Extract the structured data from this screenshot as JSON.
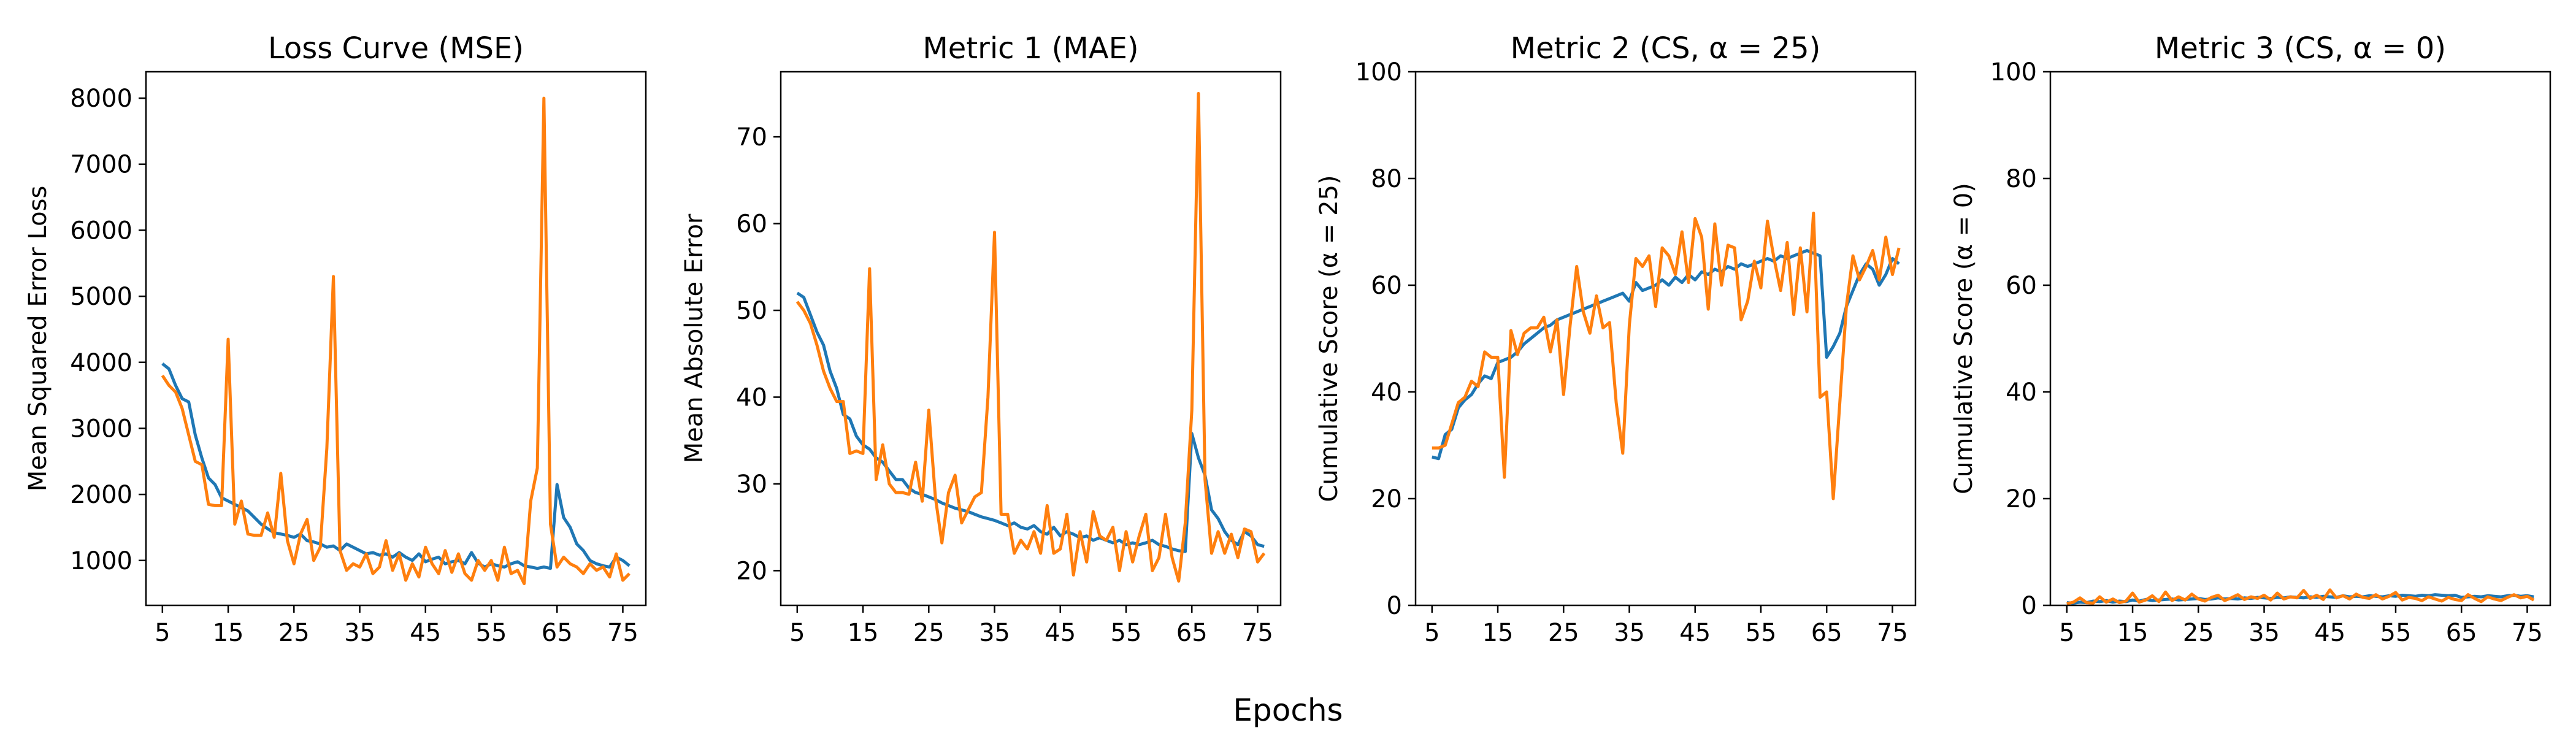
{
  "figure": {
    "xlabel": "Epochs"
  },
  "chart_data": [
    {
      "type": "line",
      "title": "Loss Curve (MSE)",
      "xlabel": "",
      "ylabel": "Mean Squared Error Loss",
      "xlim": [
        2.5,
        78.5
      ],
      "ylim": [
        320,
        8400
      ],
      "xticks": [
        5,
        15,
        25,
        35,
        45,
        55,
        65,
        75
      ],
      "yticks": [
        1000,
        2000,
        3000,
        4000,
        5000,
        6000,
        7000,
        8000
      ],
      "x": [
        5,
        6,
        7,
        8,
        9,
        10,
        11,
        12,
        13,
        14,
        15,
        16,
        17,
        18,
        19,
        20,
        21,
        22,
        23,
        24,
        25,
        26,
        27,
        28,
        29,
        30,
        31,
        32,
        33,
        34,
        35,
        36,
        37,
        38,
        39,
        40,
        41,
        42,
        43,
        44,
        45,
        46,
        47,
        48,
        49,
        50,
        51,
        52,
        53,
        54,
        55,
        56,
        57,
        58,
        59,
        60,
        61,
        62,
        63,
        64,
        65,
        66,
        67,
        68,
        69,
        70,
        71,
        72,
        73,
        74,
        75,
        76
      ],
      "series": [
        {
          "color": "#1f77b4",
          "values": [
            3980,
            3900,
            3650,
            3450,
            3400,
            2900,
            2550,
            2250,
            2150,
            1950,
            1900,
            1850,
            1800,
            1750,
            1650,
            1550,
            1480,
            1420,
            1400,
            1380,
            1350,
            1400,
            1300,
            1280,
            1250,
            1200,
            1220,
            1150,
            1250,
            1200,
            1150,
            1100,
            1120,
            1080,
            1100,
            1050,
            1120,
            1050,
            1000,
            1100,
            980,
            1020,
            1050,
            950,
            980,
            1000,
            950,
            1120,
            960,
            900,
            950,
            920,
            900,
            950,
            980,
            920,
            900,
            880,
            900,
            880,
            2150,
            1650,
            1500,
            1250,
            1150,
            1000,
            950,
            920,
            900,
            1050,
            1000,
            920
          ]
        },
        {
          "color": "#ff7f0e",
          "values": [
            3800,
            3650,
            3550,
            3300,
            2900,
            2500,
            2450,
            1850,
            1830,
            1830,
            4350,
            1550,
            1900,
            1400,
            1380,
            1380,
            1720,
            1350,
            2320,
            1300,
            950,
            1400,
            1620,
            1000,
            1200,
            2700,
            5300,
            1150,
            850,
            950,
            900,
            1100,
            800,
            900,
            1300,
            850,
            1100,
            700,
            950,
            750,
            1200,
            950,
            800,
            1150,
            820,
            1100,
            800,
            700,
            1000,
            850,
            1000,
            700,
            1200,
            800,
            850,
            650,
            1900,
            2400,
            8000,
            1550,
            900,
            1050,
            950,
            900,
            800,
            950,
            850,
            900,
            750,
            1100,
            700,
            800
          ]
        }
      ]
    },
    {
      "type": "line",
      "title": "Metric 1 (MAE)",
      "xlabel": "",
      "ylabel": "Mean Absolute Error",
      "xlim": [
        2.5,
        78.5
      ],
      "ylim": [
        16,
        77.5
      ],
      "xticks": [
        5,
        15,
        25,
        35,
        45,
        55,
        65,
        75
      ],
      "yticks": [
        20,
        30,
        40,
        50,
        60,
        70
      ],
      "x": [
        5,
        6,
        7,
        8,
        9,
        10,
        11,
        12,
        13,
        14,
        15,
        16,
        17,
        18,
        19,
        20,
        21,
        22,
        23,
        24,
        25,
        26,
        27,
        28,
        29,
        30,
        31,
        32,
        33,
        34,
        35,
        36,
        37,
        38,
        39,
        40,
        41,
        42,
        43,
        44,
        45,
        46,
        47,
        48,
        49,
        50,
        51,
        52,
        53,
        54,
        55,
        56,
        57,
        58,
        59,
        60,
        61,
        62,
        63,
        64,
        65,
        66,
        67,
        68,
        69,
        70,
        71,
        72,
        73,
        74,
        75,
        76
      ],
      "series": [
        {
          "color": "#1f77b4",
          "values": [
            52,
            51.5,
            49.5,
            47.5,
            46,
            43,
            41,
            38,
            37.5,
            35.5,
            34.5,
            34,
            33,
            32.5,
            31.5,
            30.5,
            30.5,
            29.5,
            29,
            28.8,
            28.5,
            28.2,
            27.8,
            27.5,
            27.2,
            27,
            26.8,
            26.5,
            26.2,
            26,
            25.8,
            25.5,
            25.2,
            25.5,
            25,
            24.8,
            25.2,
            24.5,
            24.2,
            25,
            24,
            24.5,
            24.2,
            23.8,
            24,
            23.5,
            23.8,
            23.5,
            23.2,
            23.5,
            23,
            23.2,
            23,
            23.2,
            23.5,
            23,
            22.8,
            22.5,
            22.3,
            22.2,
            35.8,
            33,
            31,
            27,
            26,
            24.5,
            23.5,
            23,
            24.5,
            24,
            23,
            22.8
          ]
        },
        {
          "color": "#ff7f0e",
          "values": [
            51,
            50,
            48.5,
            46,
            43,
            41,
            39.5,
            39.5,
            33.5,
            33.8,
            33.5,
            54.8,
            30.5,
            34.5,
            30,
            29,
            29,
            28.8,
            32.5,
            28,
            38.5,
            28.5,
            23.2,
            29,
            31,
            25.5,
            27,
            28.5,
            29,
            40,
            59,
            26.5,
            26.5,
            22,
            23.5,
            22.5,
            24.5,
            22,
            27.5,
            22,
            22.5,
            26.5,
            19.5,
            24.5,
            21,
            26.8,
            24,
            23.5,
            25,
            20,
            24.5,
            21,
            24,
            26.5,
            20,
            21.5,
            26.5,
            21.5,
            18.8,
            25.5,
            38.5,
            75,
            30.5,
            22,
            24.5,
            22,
            24.2,
            21.5,
            24.8,
            24.5,
            21,
            22
          ]
        }
      ]
    },
    {
      "type": "line",
      "title": "Metric 2 (CS, α = 25)",
      "xlabel": "",
      "ylabel": "Cumulative Score (α = 25)",
      "xlim": [
        2.5,
        78.5
      ],
      "ylim": [
        0,
        100
      ],
      "xticks": [
        5,
        15,
        25,
        35,
        45,
        55,
        65,
        75
      ],
      "yticks": [
        0,
        20,
        40,
        60,
        80,
        100
      ],
      "x": [
        5,
        6,
        7,
        8,
        9,
        10,
        11,
        12,
        13,
        14,
        15,
        16,
        17,
        18,
        19,
        20,
        21,
        22,
        23,
        24,
        25,
        26,
        27,
        28,
        29,
        30,
        31,
        32,
        33,
        34,
        35,
        36,
        37,
        38,
        39,
        40,
        41,
        42,
        43,
        44,
        45,
        46,
        47,
        48,
        49,
        50,
        51,
        52,
        53,
        54,
        55,
        56,
        57,
        58,
        59,
        60,
        61,
        62,
        63,
        64,
        65,
        66,
        67,
        68,
        69,
        70,
        71,
        72,
        73,
        74,
        75,
        76
      ],
      "series": [
        {
          "color": "#1f77b4",
          "values": [
            27.8,
            27.5,
            32,
            33,
            37,
            38.5,
            39.5,
            41.5,
            43,
            42.5,
            45.5,
            46,
            46.5,
            47.5,
            49,
            50,
            51,
            52,
            52.5,
            53.5,
            54,
            54.5,
            55,
            55.5,
            56,
            56.5,
            57,
            57.5,
            58,
            58.5,
            57,
            60.5,
            59,
            59.5,
            60,
            61,
            60,
            61.5,
            60.5,
            62,
            61,
            62.5,
            62,
            63,
            62.5,
            63.5,
            63,
            64,
            63.5,
            64,
            64.5,
            65,
            64.5,
            65.5,
            65,
            65.5,
            66,
            66.5,
            66,
            65.5,
            46.5,
            48.5,
            51,
            56,
            59,
            62,
            64,
            63,
            60,
            62,
            65,
            64
          ]
        },
        {
          "color": "#ff7f0e",
          "values": [
            29.5,
            29.5,
            30,
            34,
            38,
            39,
            42,
            41,
            47.5,
            46.5,
            46.5,
            24,
            51.5,
            47,
            51,
            52,
            52,
            54,
            47.5,
            53.5,
            39.5,
            52.5,
            63.5,
            55,
            51,
            58,
            52,
            53,
            38,
            28.5,
            52.5,
            65,
            63.5,
            65.5,
            56,
            67,
            65.5,
            62,
            70,
            60.5,
            72.5,
            69,
            55.5,
            71.5,
            60,
            67.5,
            67,
            53.5,
            57,
            64.5,
            59.5,
            72,
            65,
            59,
            68,
            54.5,
            67,
            55,
            73.5,
            39,
            40,
            20,
            38,
            56,
            65.5,
            61,
            63.5,
            66.5,
            61,
            69,
            62,
            67
          ]
        }
      ]
    },
    {
      "type": "line",
      "title": "Metric 3 (CS, α = 0)",
      "xlabel": "",
      "ylabel": "Cumulative Score (α = 0)",
      "xlim": [
        2.5,
        78.5
      ],
      "ylim": [
        0,
        100
      ],
      "xticks": [
        5,
        15,
        25,
        35,
        45,
        55,
        65,
        75
      ],
      "yticks": [
        0,
        20,
        40,
        60,
        80,
        100
      ],
      "x": [
        5,
        6,
        7,
        8,
        9,
        10,
        11,
        12,
        13,
        14,
        15,
        16,
        17,
        18,
        19,
        20,
        21,
        22,
        23,
        24,
        25,
        26,
        27,
        28,
        29,
        30,
        31,
        32,
        33,
        34,
        35,
        36,
        37,
        38,
        39,
        40,
        41,
        42,
        43,
        44,
        45,
        46,
        47,
        48,
        49,
        50,
        51,
        52,
        53,
        54,
        55,
        56,
        57,
        58,
        59,
        60,
        61,
        62,
        63,
        64,
        65,
        66,
        67,
        68,
        69,
        70,
        71,
        72,
        73,
        74,
        75,
        76
      ],
      "series": [
        {
          "color": "#1f77b4",
          "values": [
            0.5,
            0.4,
            0.6,
            0.5,
            0.8,
            0.7,
            0.9,
            0.6,
            0.8,
            0.7,
            1.0,
            0.8,
            1.1,
            0.9,
            1.0,
            1.1,
            1.2,
            1.0,
            1.1,
            1.2,
            1.3,
            1.1,
            1.2,
            1.4,
            1.2,
            1.3,
            1.2,
            1.4,
            1.3,
            1.5,
            1.4,
            1.3,
            1.5,
            1.4,
            1.6,
            1.5,
            1.4,
            1.6,
            1.5,
            1.7,
            1.6,
            1.5,
            1.8,
            1.6,
            1.7,
            1.6,
            1.8,
            1.7,
            1.6,
            1.8,
            1.7,
            1.9,
            1.8,
            1.7,
            1.9,
            1.8,
            2.0,
            1.9,
            1.8,
            1.9,
            1.5,
            1.6,
            1.7,
            1.6,
            1.8,
            1.7,
            1.6,
            1.8,
            1.9,
            1.7,
            1.8,
            1.6
          ]
        },
        {
          "color": "#ff7f0e",
          "values": [
            0.3,
            0.6,
            1.4,
            0.5,
            0.4,
            1.6,
            0.6,
            1.2,
            0.5,
            0.8,
            2.3,
            0.6,
            1.0,
            1.8,
            0.7,
            2.5,
            0.9,
            1.6,
            1.0,
            2.1,
            1.2,
            0.8,
            1.5,
            1.9,
            0.9,
            1.4,
            2.0,
            1.1,
            1.6,
            1.3,
            1.9,
            1.0,
            2.3,
            1.2,
            1.6,
            1.4,
            2.8,
            1.3,
            1.9,
            1.1,
            2.9,
            1.4,
            1.8,
            1.2,
            2.1,
            1.5,
            1.3,
            2.0,
            1.2,
            1.7,
            2.4,
            1.0,
            1.5,
            1.3,
            0.9,
            1.6,
            1.2,
            0.8,
            1.5,
            1.1,
            0.9,
            2.0,
            1.3,
            0.7,
            1.6,
            1.2,
            0.9,
            1.5,
            2.0,
            1.4,
            1.7,
            1.0
          ]
        }
      ]
    }
  ]
}
